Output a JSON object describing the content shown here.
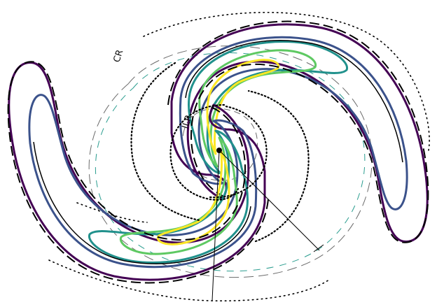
{
  "labels": {
    "corotation": "CR",
    "inner_lindblad": "ILR"
  },
  "colors": {
    "background": "#ffffff",
    "contour_outer": "#440154",
    "contour_2": "#3b528b",
    "contour_3": "#21918c",
    "contour_4": "#5ec962",
    "contour_inner": "#fde725",
    "overlay_solid": "#000000",
    "overlay_dashed": "#000000",
    "overlay_dotted": "#000000",
    "resonance_circle": "#6b6b6b",
    "resonance_circle_teal": "#2a9d8f"
  },
  "contour_levels": [
    "outer",
    "2",
    "3",
    "4",
    "inner"
  ],
  "resonance_circles": [
    "CR",
    "ILR"
  ],
  "center_marker": "dot",
  "radial_lines": 2
}
